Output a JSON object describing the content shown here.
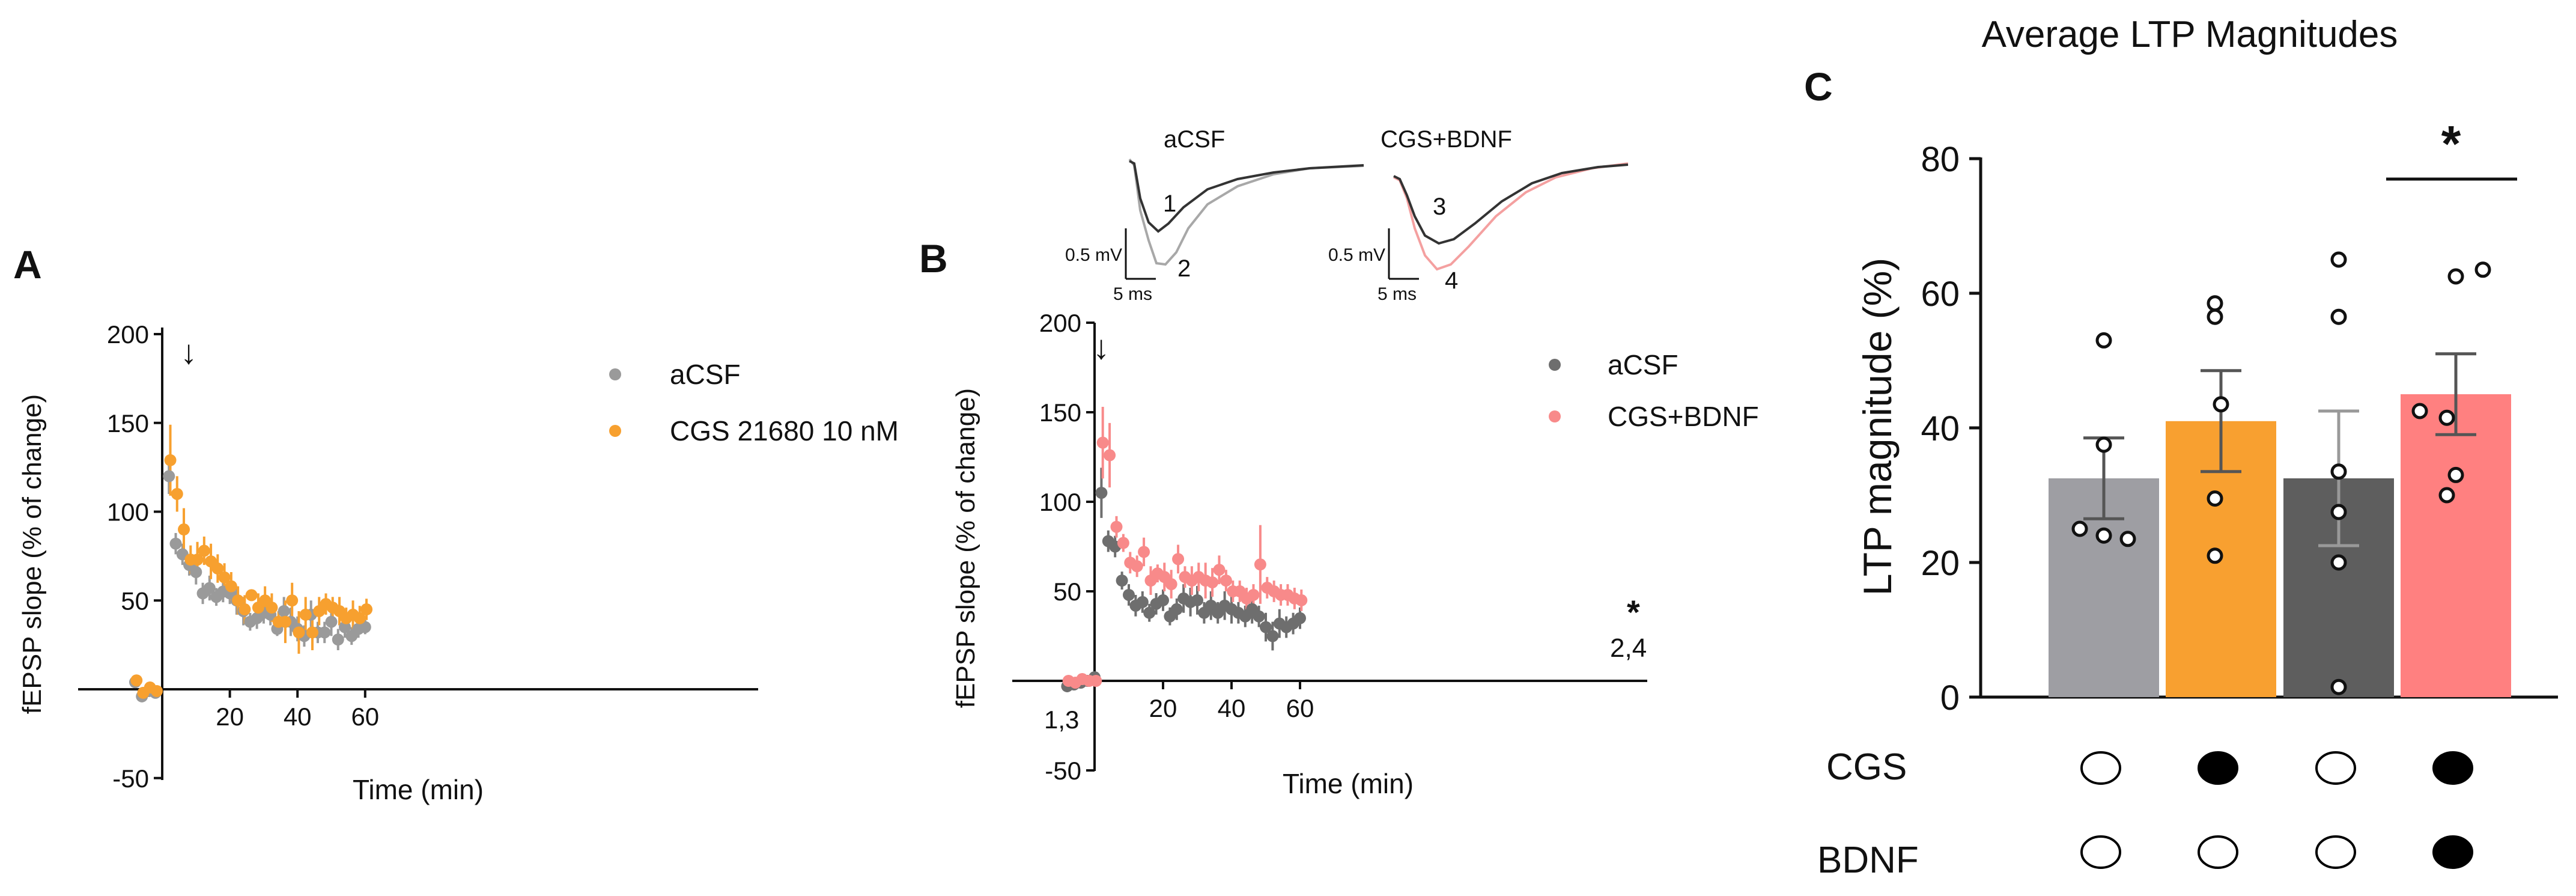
{
  "colors": {
    "acsf_A": "#9a9a9a",
    "cgs": "#f7a02f",
    "acsf_B": "#6e6e6e",
    "cgs_bdnf": "#f88a8a",
    "bar_acsf": "#9e9ea3",
    "bar_cgs": "#f8a030",
    "bar_bdnf": "#5e5e5e",
    "bar_cgs_bdnf": "#ff8080",
    "axis": "#111111",
    "trace_black": "#333333",
    "trace_grey": "#a8a8a8"
  },
  "chart_data": [
    {
      "type": "scatter",
      "panel_label": "A",
      "xlabel": "Time (min)",
      "ylabel": "fEPSP slope (% of change)",
      "xlim": [
        -10,
        70
      ],
      "ylim": [
        -50,
        200
      ],
      "xticks": [
        20,
        40,
        60
      ],
      "xtick_labels": [
        "20",
        "40",
        "60"
      ],
      "yticks": [
        -50,
        50,
        100,
        150,
        200
      ],
      "ytick_labels": [
        "-50",
        "50",
        "100",
        "150",
        "200"
      ],
      "arrow_marker": "↓",
      "legend_position": "top-right",
      "series": [
        {
          "name": "aCSF",
          "color_key": "acsf_A",
          "x": [
            -8,
            -6,
            -4,
            -2,
            2,
            4,
            6,
            8,
            10,
            12,
            14,
            16,
            18,
            20,
            22,
            24,
            26,
            28,
            30,
            32,
            34,
            36,
            38,
            40,
            42,
            44,
            46,
            48,
            50,
            52,
            54,
            56,
            58,
            60
          ],
          "y": [
            4,
            -4,
            -1,
            -2,
            120,
            82,
            76,
            70,
            66,
            54,
            57,
            52,
            55,
            54,
            50,
            44,
            38,
            40,
            43,
            42,
            34,
            44,
            38,
            34,
            30,
            42,
            32,
            32,
            38,
            28,
            35,
            30,
            34,
            35
          ],
          "err": [
            2,
            3,
            2,
            2,
            10,
            6,
            6,
            6,
            7,
            6,
            7,
            5,
            6,
            6,
            8,
            8,
            5,
            6,
            6,
            6,
            4,
            8,
            8,
            7,
            6,
            8,
            6,
            6,
            8,
            6,
            6,
            5,
            5,
            4
          ]
        },
        {
          "name": "CGS 21680 10 nM",
          "color_key": "cgs",
          "x": [
            -8,
            -6,
            -4,
            -2,
            2,
            4,
            6,
            8,
            10,
            12,
            14,
            16,
            18,
            20,
            22,
            24,
            26,
            28,
            30,
            32,
            34,
            36,
            38,
            40,
            42,
            44,
            46,
            48,
            50,
            52,
            54,
            56,
            58,
            60
          ],
          "y": [
            5,
            -2,
            1,
            -1,
            129,
            110,
            90,
            73,
            73,
            78,
            72,
            68,
            63,
            58,
            50,
            45,
            53,
            46,
            50,
            46,
            38,
            38,
            50,
            32,
            42,
            32,
            44,
            48,
            46,
            44,
            40,
            42,
            40,
            45
          ],
          "err": [
            2,
            3,
            2,
            2,
            20,
            10,
            12,
            8,
            10,
            8,
            10,
            8,
            8,
            8,
            8,
            8,
            3,
            8,
            8,
            8,
            6,
            12,
            10,
            12,
            10,
            10,
            8,
            6,
            6,
            8,
            6,
            8,
            7,
            6
          ]
        }
      ]
    },
    {
      "type": "scatter",
      "panel_label": "B",
      "xlabel": "Time (min)",
      "ylabel": "fEPSP slope (% of change)",
      "xlim": [
        -10,
        70
      ],
      "ylim": [
        -50,
        200
      ],
      "xticks": [
        20,
        40,
        60
      ],
      "xtick_labels": [
        "20",
        "40",
        "60"
      ],
      "yticks": [
        -50,
        50,
        100,
        150,
        200
      ],
      "ytick_labels": [
        "-50",
        "50",
        "100",
        "150",
        "200"
      ],
      "arrow_marker": "↓",
      "legend_position": "top-right",
      "annotations": {
        "baseline_label": "1,3",
        "end_label": "2,4",
        "significance": "*"
      },
      "series": [
        {
          "name": "aCSF",
          "color_key": "acsf_B",
          "x": [
            -8,
            -6,
            -4,
            -2,
            0,
            2,
            4,
            6,
            8,
            10,
            12,
            14,
            16,
            18,
            20,
            22,
            24,
            26,
            28,
            30,
            32,
            34,
            36,
            38,
            40,
            42,
            44,
            46,
            48,
            50,
            52,
            54,
            56,
            58,
            60
          ],
          "y": [
            -3,
            -2,
            -1,
            0,
            2,
            105,
            78,
            75,
            56,
            48,
            42,
            44,
            38,
            43,
            45,
            36,
            40,
            46,
            44,
            45,
            38,
            42,
            38,
            42,
            40,
            38,
            36,
            40,
            36,
            30,
            25,
            32,
            30,
            32,
            35
          ],
          "err": [
            2,
            2,
            2,
            2,
            3,
            14,
            6,
            6,
            5,
            6,
            6,
            6,
            5,
            6,
            6,
            5,
            6,
            8,
            8,
            8,
            6,
            8,
            6,
            8,
            8,
            6,
            6,
            8,
            6,
            8,
            8,
            8,
            6,
            6,
            6
          ]
        },
        {
          "name": "CGS+BDNF",
          "color_key": "cgs_bdnf",
          "x": [
            -8,
            -6,
            -4,
            -2,
            0,
            2,
            4,
            6,
            8,
            10,
            12,
            14,
            16,
            18,
            20,
            22,
            24,
            26,
            28,
            30,
            32,
            34,
            36,
            38,
            40,
            42,
            44,
            46,
            48,
            50,
            52,
            54,
            56,
            58,
            60
          ],
          "y": [
            0,
            -1,
            1,
            0,
            0,
            133,
            126,
            86,
            77,
            66,
            64,
            72,
            56,
            60,
            58,
            54,
            68,
            58,
            56,
            58,
            56,
            55,
            62,
            56,
            50,
            50,
            46,
            48,
            65,
            52,
            50,
            48,
            48,
            46,
            45
          ],
          "err": [
            2,
            2,
            2,
            2,
            2,
            20,
            18,
            6,
            5,
            6,
            6,
            8,
            8,
            5,
            8,
            8,
            8,
            6,
            8,
            8,
            10,
            8,
            8,
            6,
            6,
            6,
            6,
            6,
            22,
            6,
            6,
            6,
            6,
            6,
            6
          ]
        }
      ]
    },
    {
      "type": "bar",
      "panel_label": "C",
      "title": "Average LTP Magnitudes",
      "ylabel": "LTP magnitude (%)",
      "ylim": [
        0,
        80
      ],
      "yticks": [
        0,
        20,
        40,
        60,
        80
      ],
      "ytick_labels": [
        "0",
        "20",
        "40",
        "60",
        "80"
      ],
      "values": [
        32.5,
        41,
        32.5,
        45
      ],
      "sem": [
        6,
        7.5,
        10,
        6
      ],
      "bar_color_keys": [
        "bar_acsf",
        "bar_cgs",
        "bar_bdnf",
        "bar_cgs_bdnf"
      ],
      "points": [
        [
          53,
          37.5,
          25,
          24,
          23.5
        ],
        [
          58.5,
          56.5,
          43.5,
          29.5,
          21
        ],
        [
          65,
          56.5,
          33.5,
          27.5,
          20,
          1.5
        ],
        [
          63.5,
          62.5,
          42.5,
          41.5,
          33,
          30
        ]
      ],
      "significance": {
        "label": "*",
        "between": [
          3,
          4
        ]
      },
      "condition_rows": [
        {
          "label": "CGS",
          "filled": [
            false,
            true,
            false,
            true
          ]
        },
        {
          "label": "BDNF",
          "filled": [
            false,
            false,
            false,
            true
          ]
        }
      ]
    }
  ],
  "insets": {
    "left": {
      "title": "aCSF",
      "label_1": "1",
      "label_2": "2",
      "scale_mv": "0.5 mV",
      "scale_ms": "5 ms"
    },
    "right": {
      "title": "CGS+BDNF",
      "label_1": "3",
      "label_2": "4",
      "scale_mv": "0.5 mV",
      "scale_ms": "5 ms"
    }
  }
}
